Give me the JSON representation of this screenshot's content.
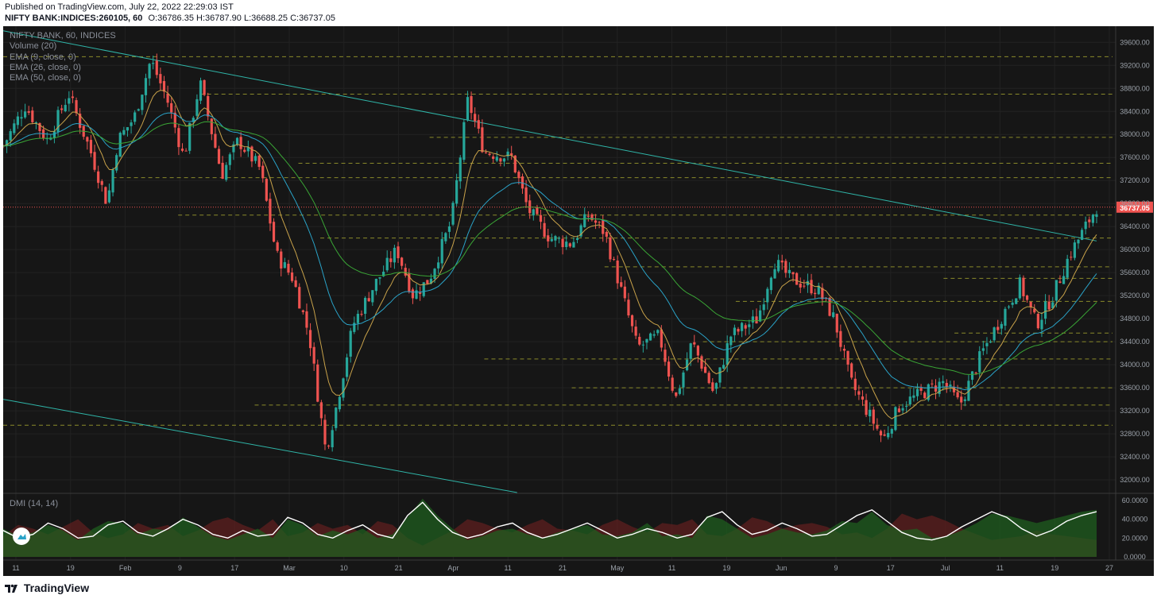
{
  "header": {
    "published": "Published on TradingView.com, July 22, 2022 22:29:03 IST",
    "symbol": "NIFTY BANK:INDICES:260105, 60",
    "ohlc": "O:36786.35 H:36787.90 L:36688.25 C:36737.05"
  },
  "legend": {
    "title": "NIFTY BANK, 60, INDICES",
    "volume": "Volume (20)",
    "ema9": "EMA (9, close, 0)",
    "ema26": "EMA (26, close, 0)",
    "ema50": "EMA (50, close, 0)",
    "dmi": "DMI (14, 14)"
  },
  "footer": {
    "brand": "TradingView"
  },
  "colors": {
    "background": "#161616",
    "up": "#26a69a",
    "down": "#ef5350",
    "ema9": "#c8a24a",
    "ema26": "#2aa3c8",
    "ema50": "#3aa636",
    "trendline": "#2fb5a8",
    "level": "#8a8a2a",
    "price_line": "#ef5350",
    "adx": "#ffffff",
    "di_plus": "#1f5e1f",
    "di_minus": "#5e1f1f"
  },
  "chart_data": {
    "type": "candlestick",
    "price_axis": {
      "ticks": [
        39600,
        39200,
        38800,
        38400,
        38000,
        37600,
        37200,
        36800,
        36400,
        36000,
        35600,
        35200,
        34800,
        34400,
        34000,
        33600,
        33200,
        32800,
        32400,
        32000
      ],
      "range": [
        31780,
        39880
      ],
      "last_price": "36737.05"
    },
    "time_axis": {
      "labels": [
        "11",
        "19",
        "Feb",
        "9",
        "17",
        "Mar",
        "10",
        "21",
        "Apr",
        "11",
        "21",
        "May",
        "11",
        "19",
        "Jun",
        "9",
        "17",
        "Jul",
        "11",
        "19",
        "27"
      ]
    },
    "dmi_axis": {
      "ticks": [
        "60.0000",
        "40.0000",
        "20.0000",
        "0.0000"
      ],
      "range": [
        0,
        65
      ]
    },
    "price_path": [
      [
        0.0,
        37800
      ],
      [
        0.02,
        38500
      ],
      [
        0.04,
        37900
      ],
      [
        0.06,
        38700
      ],
      [
        0.08,
        37700
      ],
      [
        0.095,
        36800
      ],
      [
        0.105,
        37900
      ],
      [
        0.12,
        38300
      ],
      [
        0.135,
        39300
      ],
      [
        0.15,
        38600
      ],
      [
        0.165,
        37600
      ],
      [
        0.18,
        38900
      ],
      [
        0.2,
        37300
      ],
      [
        0.215,
        37900
      ],
      [
        0.235,
        37400
      ],
      [
        0.25,
        35900
      ],
      [
        0.265,
        35500
      ],
      [
        0.28,
        34500
      ],
      [
        0.295,
        32500
      ],
      [
        0.305,
        33300
      ],
      [
        0.32,
        34700
      ],
      [
        0.34,
        35400
      ],
      [
        0.36,
        36000
      ],
      [
        0.375,
        35200
      ],
      [
        0.39,
        35500
      ],
      [
        0.41,
        36500
      ],
      [
        0.425,
        38600
      ],
      [
        0.44,
        37700
      ],
      [
        0.465,
        37600
      ],
      [
        0.48,
        36700
      ],
      [
        0.5,
        36200
      ],
      [
        0.52,
        36100
      ],
      [
        0.535,
        36600
      ],
      [
        0.55,
        36300
      ],
      [
        0.58,
        34300
      ],
      [
        0.6,
        34500
      ],
      [
        0.615,
        33400
      ],
      [
        0.63,
        34400
      ],
      [
        0.65,
        33500
      ],
      [
        0.665,
        34500
      ],
      [
        0.69,
        34800
      ],
      [
        0.705,
        35800
      ],
      [
        0.72,
        35500
      ],
      [
        0.745,
        35300
      ],
      [
        0.76,
        34800
      ],
      [
        0.775,
        33700
      ],
      [
        0.79,
        33200
      ],
      [
        0.805,
        32700
      ],
      [
        0.82,
        33300
      ],
      [
        0.84,
        33500
      ],
      [
        0.86,
        33700
      ],
      [
        0.875,
        33300
      ],
      [
        0.895,
        34200
      ],
      [
        0.915,
        34900
      ],
      [
        0.93,
        35400
      ],
      [
        0.945,
        34700
      ],
      [
        0.96,
        35200
      ],
      [
        0.975,
        35900
      ],
      [
        0.99,
        36400
      ],
      [
        1.0,
        36740
      ]
    ],
    "levels": [
      39350,
      38700,
      37950,
      37500,
      37250,
      36600,
      36200,
      35700,
      35500,
      35100,
      34550,
      34400,
      34100,
      33600,
      33300,
      32950
    ],
    "trendlines": [
      {
        "from": [
          0.0,
          39800
        ],
        "to": [
          1.0,
          36150
        ]
      },
      {
        "from": [
          0.0,
          33400
        ],
        "to": [
          0.47,
          31780
        ]
      }
    ],
    "dmi": {
      "adx_path": [
        28,
        20,
        24,
        36,
        30,
        20,
        22,
        34,
        38,
        26,
        22,
        30,
        40,
        34,
        24,
        20,
        28,
        22,
        24,
        42,
        36,
        24,
        20,
        28,
        34,
        24,
        20,
        44,
        58,
        40,
        26,
        20,
        24,
        32,
        36,
        26,
        20,
        24,
        30,
        36,
        28,
        20,
        24,
        30,
        26,
        20,
        24,
        42,
        48,
        34,
        24,
        28,
        36,
        30,
        22,
        24,
        34,
        44,
        50,
        38,
        26,
        20,
        18,
        22,
        32,
        40,
        48,
        42,
        30,
        22,
        28,
        38,
        44,
        48
      ],
      "di_plus_path": [
        30,
        22,
        26,
        34,
        28,
        18,
        30,
        38,
        36,
        24,
        30,
        28,
        42,
        32,
        22,
        18,
        24,
        30,
        20,
        40,
        34,
        22,
        28,
        24,
        30,
        20,
        24,
        42,
        62,
        44,
        30,
        18,
        22,
        28,
        30,
        24,
        20,
        26,
        30,
        34,
        24,
        22,
        26,
        36,
        22,
        24,
        20,
        44,
        40,
        30,
        20,
        24,
        30,
        26,
        24,
        28,
        38,
        36,
        48,
        34,
        28,
        30,
        20,
        22,
        28,
        36,
        46,
        44,
        40,
        36,
        40,
        44,
        48,
        50
      ],
      "di_minus_path": [
        22,
        34,
        30,
        24,
        32,
        40,
        26,
        20,
        24,
        36,
        30,
        34,
        22,
        28,
        38,
        42,
        34,
        28,
        40,
        22,
        26,
        36,
        30,
        34,
        24,
        38,
        34,
        20,
        12,
        20,
        28,
        40,
        36,
        30,
        26,
        34,
        40,
        30,
        28,
        24,
        34,
        40,
        32,
        26,
        36,
        34,
        40,
        24,
        22,
        30,
        42,
        38,
        30,
        34,
        36,
        32,
        24,
        26,
        20,
        30,
        46,
        40,
        44,
        38,
        30,
        24,
        18,
        20,
        22,
        28,
        24,
        22,
        20,
        18
      ]
    }
  }
}
